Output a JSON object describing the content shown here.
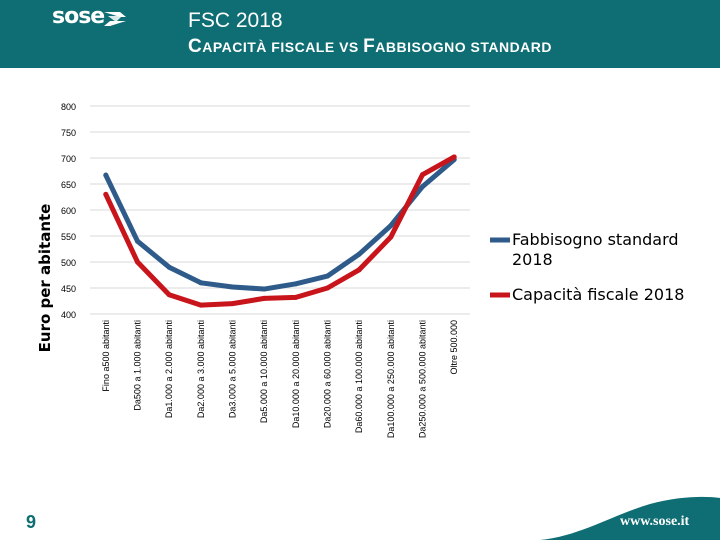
{
  "header": {
    "logo_text": "sose",
    "title": "FSC 2018",
    "subtitle_parts": [
      "C",
      "APACITÀ FISCALE VS ",
      "F",
      "ABBISOGNO STANDARD"
    ]
  },
  "footer": {
    "page_number": "9",
    "url": "www.sose.it"
  },
  "colors": {
    "header_bg": "#0f6e73",
    "series_fabbisogno": "#2e5b8a",
    "series_capacita": "#c8141b",
    "grid": "#d9d9d9",
    "text": "#000000"
  },
  "chart_data": {
    "type": "line",
    "ylabel": "Euro per abitante",
    "ylim": [
      400,
      800
    ],
    "yticks": [
      400,
      450,
      500,
      550,
      600,
      650,
      700,
      750,
      800
    ],
    "grid": true,
    "legend_position": "right",
    "categories": [
      "Fino a500 abitanti",
      "Da500 a 1.000 abitanti",
      "Da1.000 a 2.000 abitanti",
      "Da2.000 a 3.000 abitanti",
      "Da3.000 a 5.000 abitanti",
      "Da5.000 a 10.000 abitanti",
      "Da10.000 a 20.000 abitanti",
      "Da20.000 a 60.000 abitanti",
      "Da60.000 a 100.000 abitanti",
      "Da100.000 a 250.000 abitanti",
      "Da250.000 a 500.000 abitanti",
      "Oltre 500.000"
    ],
    "series": [
      {
        "name": "Fabbisogno standard 2018",
        "legend_lines": [
          "Fabbisogno standard",
          "2018"
        ],
        "color": "#2e5b8a",
        "values": [
          667,
          540,
          490,
          460,
          452,
          448,
          458,
          473,
          515,
          570,
          645,
          697
        ]
      },
      {
        "name": "Capacità fiscale 2018",
        "legend_lines": [
          "Capacità fiscale 2018"
        ],
        "color": "#c8141b",
        "values": [
          630,
          500,
          437,
          417,
          420,
          430,
          432,
          450,
          485,
          548,
          668,
          702
        ]
      }
    ]
  }
}
